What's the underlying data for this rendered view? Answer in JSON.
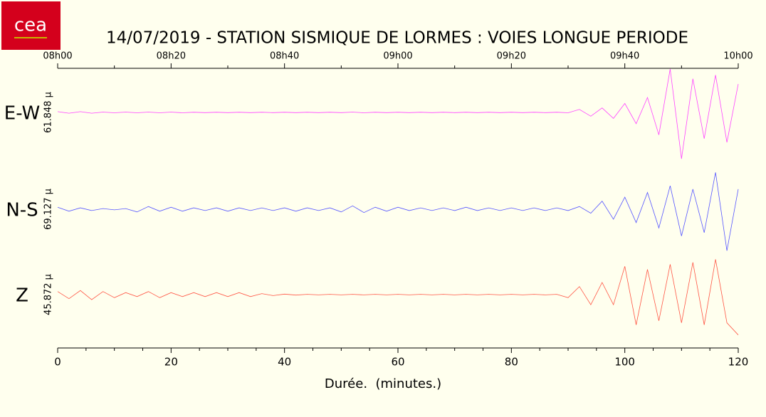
{
  "logo": "cea",
  "chart_data": {
    "type": "seismogram",
    "title": "14/07/2019  -  STATION SISMIQUE DE LORMES : VOIES LONGUE PERIODE",
    "xlabel": "Durée.  (minutes.)",
    "xlim": [
      0,
      120
    ],
    "xticks": [
      0,
      20,
      40,
      60,
      80,
      100,
      120
    ],
    "xticks_minor": [
      5,
      10,
      15,
      25,
      30,
      35,
      45,
      50,
      55,
      65,
      70,
      75,
      85,
      90,
      95,
      105,
      110,
      115
    ],
    "x2ticks": [
      {
        "value": 0,
        "label": "08h00"
      },
      {
        "value": 20,
        "label": "08h20"
      },
      {
        "value": 40,
        "label": "08h40"
      },
      {
        "value": 60,
        "label": "09h00"
      },
      {
        "value": 80,
        "label": "09h20"
      },
      {
        "value": 100,
        "label": "09h40"
      },
      {
        "value": 120,
        "label": "10h00"
      }
    ],
    "x2ticks_minor": [
      10,
      30,
      50,
      70,
      90,
      110
    ],
    "x": [
      0,
      2,
      4,
      6,
      8,
      10,
      12,
      14,
      16,
      18,
      20,
      22,
      24,
      26,
      28,
      30,
      32,
      34,
      36,
      38,
      40,
      42,
      44,
      46,
      48,
      50,
      52,
      54,
      56,
      58,
      60,
      62,
      64,
      66,
      68,
      70,
      72,
      74,
      76,
      78,
      80,
      82,
      84,
      86,
      88,
      90,
      92,
      94,
      96,
      98,
      100,
      102,
      104,
      106,
      108,
      110,
      112,
      114,
      116,
      118,
      120
    ],
    "series": [
      {
        "name": "E-W",
        "color": "#ff44ff",
        "scale": {
          "value": 61.848,
          "label": "61.848 µ"
        },
        "values": [
          1,
          -1,
          1,
          -1,
          0.5,
          -0.5,
          0.5,
          -0.5,
          0.5,
          -0.5,
          0.5,
          -0.5,
          0.3,
          -0.3,
          0.3,
          -0.3,
          0.3,
          -0.3,
          0.3,
          -0.3,
          0.3,
          -0.3,
          0.3,
          -0.3,
          0.3,
          -0.3,
          0.5,
          -0.5,
          0.3,
          -0.3,
          0.3,
          -0.3,
          0.3,
          -0.3,
          0.3,
          -0.3,
          0.3,
          -0.3,
          0.3,
          -0.3,
          0.3,
          -0.3,
          0.3,
          -0.3,
          0.3,
          -0.5,
          4,
          -5,
          6,
          -8,
          12,
          -15,
          20,
          -30,
          58,
          -62,
          45,
          -35,
          50,
          -40,
          38
        ]
      },
      {
        "name": "N-S",
        "color": "#5555ff",
        "scale": {
          "value": 69.127,
          "label": "69.127 µ"
        },
        "values": [
          3,
          -3,
          2,
          -2,
          1,
          -1,
          1,
          -4,
          4,
          -3,
          3,
          -3,
          2,
          -2,
          2,
          -3,
          2,
          -2,
          2,
          -2,
          2,
          -3,
          2,
          -2,
          2,
          -4,
          5,
          -5,
          3,
          -3,
          3,
          -2,
          2,
          -2,
          2,
          -2,
          3,
          -2,
          2,
          -2,
          2,
          -2,
          2,
          -2,
          2,
          -2,
          4,
          -6,
          12,
          -15,
          18,
          -20,
          25,
          -28,
          35,
          -40,
          30,
          -35,
          55,
          -62,
          30
        ]
      },
      {
        "name": "Z",
        "color": "#ff5544",
        "scale": {
          "value": 45.872,
          "label": "45.872 µ"
        },
        "values": [
          3,
          -4,
          4,
          -5,
          3,
          -3,
          2,
          -2,
          3,
          -3,
          2,
          -2,
          2,
          -2,
          2,
          -2,
          2,
          -2,
          1,
          -1,
          0.5,
          -0.5,
          0.3,
          -0.3,
          0.3,
          -0.3,
          0.3,
          -0.3,
          0.3,
          -0.3,
          0.3,
          -0.3,
          0.3,
          -0.3,
          0.3,
          -0.3,
          0.3,
          -0.3,
          0.3,
          -0.3,
          0.3,
          -0.3,
          0.3,
          -0.3,
          0.3,
          -3,
          8,
          -10,
          12,
          -10,
          28,
          -30,
          25,
          -26,
          30,
          -28,
          32,
          -30,
          35,
          -28,
          -40
        ]
      }
    ]
  }
}
